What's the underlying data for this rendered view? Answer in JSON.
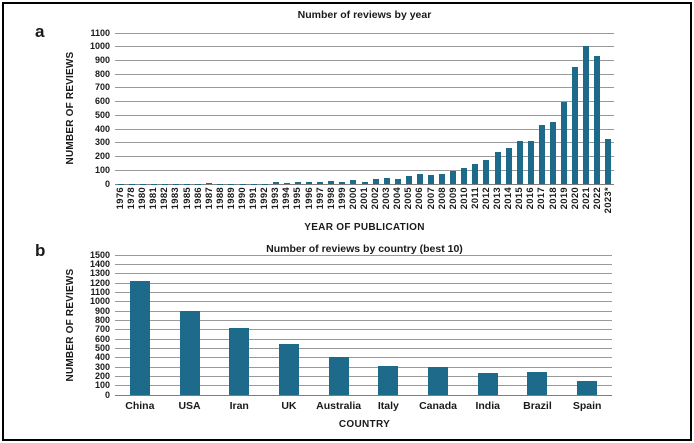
{
  "figure": {
    "panel_a_letter": "a",
    "panel_b_letter": "b"
  },
  "colors": {
    "bar": "#1e6a8b",
    "gridline": "#999999",
    "baseline": "#7d7d7d",
    "text": "#1a1a1a",
    "frame": "#000000",
    "background": "#ffffff"
  },
  "chart_data": [
    {
      "type": "bar",
      "panel": "a",
      "title": "Number of reviews by year",
      "xlabel": "YEAR OF PUBLICATION",
      "ylabel": "NUMBER OF REVIEWS",
      "ylim": [
        0,
        1100
      ],
      "ytick_step": 100,
      "yticks": [
        0,
        100,
        200,
        300,
        400,
        500,
        600,
        700,
        800,
        900,
        1000,
        1100
      ],
      "grid": true,
      "legend": "none",
      "categories": [
        "1976",
        "1978",
        "1980",
        "1981",
        "1982",
        "1983",
        "1985",
        "1986",
        "1987",
        "1988",
        "1989",
        "1990",
        "1991",
        "1992",
        "1993",
        "1994",
        "1995",
        "1996",
        "1997",
        "1998",
        "1999",
        "2000",
        "2001",
        "2002",
        "2003",
        "2004",
        "2005",
        "2006",
        "2007",
        "2008",
        "2009",
        "2010",
        "2011",
        "2012",
        "2013",
        "2014",
        "2015",
        "2016",
        "2017",
        "2018",
        "2019",
        "2020",
        "2021",
        "2022",
        "2023*"
      ],
      "values": [
        2,
        2,
        2,
        2,
        2,
        2,
        2,
        2,
        8,
        2,
        2,
        3,
        2,
        3,
        12,
        9,
        12,
        15,
        12,
        25,
        15,
        30,
        17,
        33,
        42,
        33,
        55,
        70,
        65,
        75,
        92,
        120,
        148,
        175,
        232,
        262,
        310,
        312,
        430,
        450,
        600,
        850,
        1005,
        930,
        330
      ]
    },
    {
      "type": "bar",
      "panel": "b",
      "title": "Number of reviews by  country (best 10)",
      "xlabel": "COUNTRY",
      "ylabel": "NUMBER OF REVIEWS",
      "ylim": [
        0,
        1500
      ],
      "ytick_step": 100,
      "yticks": [
        0,
        100,
        200,
        300,
        400,
        500,
        600,
        700,
        800,
        900,
        1000,
        1100,
        1200,
        1300,
        1400,
        1500
      ],
      "grid": true,
      "legend": "none",
      "categories": [
        "China",
        "USA",
        "Iran",
        "UK",
        "Australia",
        "Italy",
        "Canada",
        "India",
        "Brazil",
        "Spain"
      ],
      "values": [
        1220,
        900,
        720,
        550,
        410,
        310,
        300,
        240,
        245,
        155
      ]
    }
  ]
}
